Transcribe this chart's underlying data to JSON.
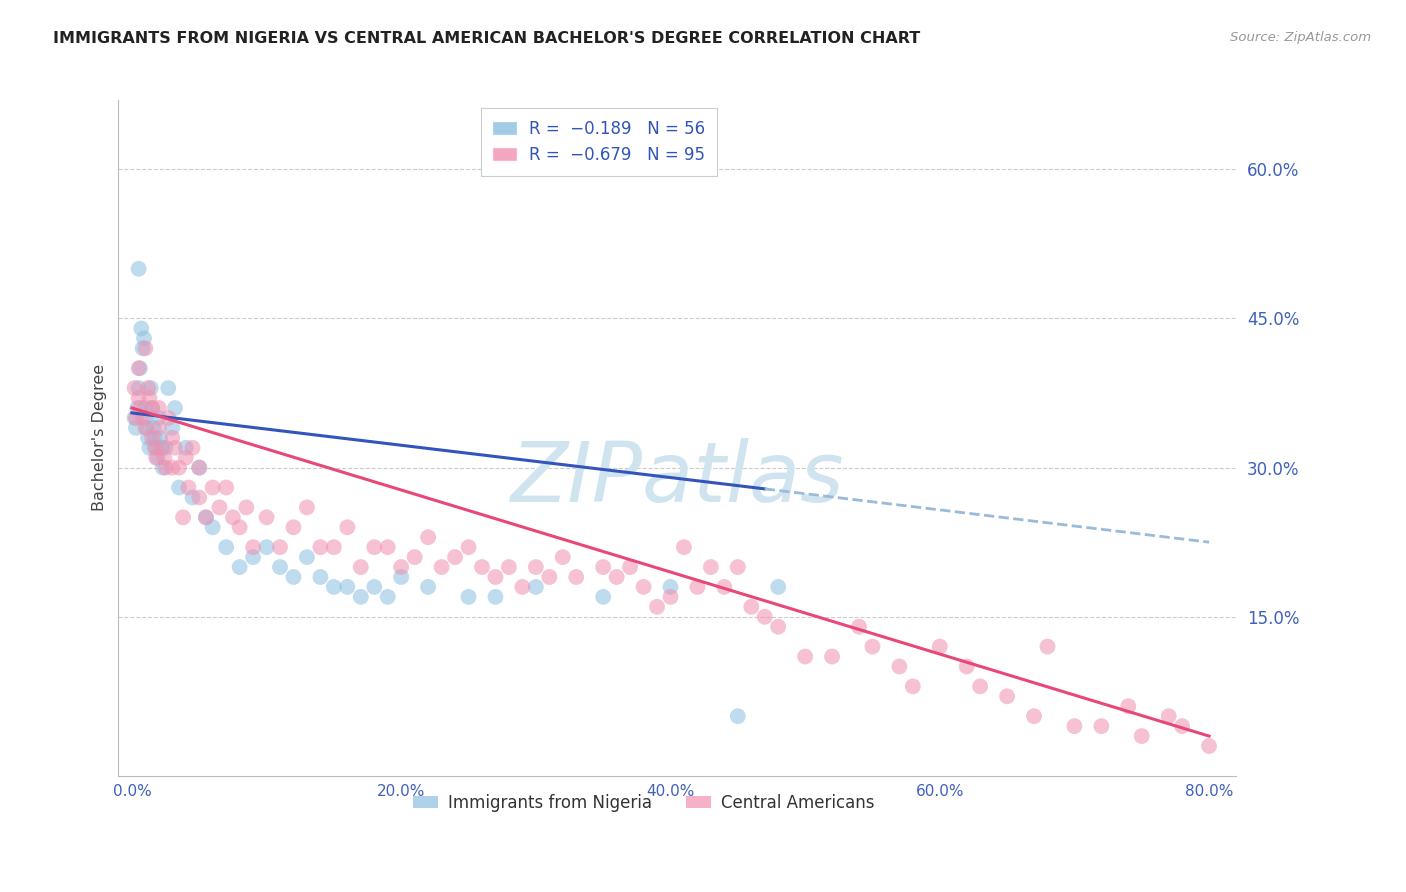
{
  "title": "IMMIGRANTS FROM NIGERIA VS CENTRAL AMERICAN BACHELOR'S DEGREE CORRELATION CHART",
  "source": "Source: ZipAtlas.com",
  "ylabel": "Bachelor’s Degree",
  "xlabel_ticks": [
    "0.0%",
    "20.0%",
    "40.0%",
    "60.0%",
    "80.0%"
  ],
  "xlabel_vals": [
    0,
    20,
    40,
    60,
    80
  ],
  "ylabel_ticks_right": [
    "60.0%",
    "45.0%",
    "30.0%",
    "15.0%"
  ],
  "ylabel_vals_right": [
    60,
    45,
    30,
    15
  ],
  "xlim": [
    -1,
    82
  ],
  "ylim": [
    -1,
    67
  ],
  "nigeria_color": "#8bbfe0",
  "central_color": "#f090b0",
  "nigeria_line_color": "#3355bb",
  "central_line_color": "#e84878",
  "dashed_color": "#99bbd8",
  "watermark_text": "ZIPatlas",
  "legend1_nigeria": "R =  −0.189   N = 56",
  "legend1_central": "R =  −0.679   N = 95",
  "legend2_nigeria": "Immigrants from Nigeria",
  "legend2_central": "Central Americans",
  "nigeria_x": [
    0.2,
    0.3,
    0.4,
    0.5,
    0.5,
    0.6,
    0.7,
    0.8,
    0.9,
    1.0,
    1.0,
    1.1,
    1.2,
    1.3,
    1.4,
    1.5,
    1.6,
    1.7,
    1.8,
    1.9,
    2.0,
    2.1,
    2.2,
    2.3,
    2.5,
    2.7,
    3.0,
    3.2,
    3.5,
    4.0,
    4.5,
    5.0,
    5.5,
    6.0,
    7.0,
    8.0,
    9.0,
    10.0,
    11.0,
    12.0,
    13.0,
    14.0,
    15.0,
    16.0,
    17.0,
    18.0,
    19.0,
    20.0,
    22.0,
    25.0,
    27.0,
    30.0,
    35.0,
    40.0,
    45.0,
    48.0
  ],
  "nigeria_y": [
    35.0,
    34.0,
    36.0,
    50.0,
    38.0,
    40.0,
    44.0,
    42.0,
    43.0,
    36.0,
    35.0,
    34.0,
    33.0,
    32.0,
    38.0,
    36.0,
    34.0,
    33.0,
    32.0,
    31.0,
    35.0,
    33.0,
    32.0,
    30.0,
    32.0,
    38.0,
    34.0,
    36.0,
    28.0,
    32.0,
    27.0,
    30.0,
    25.0,
    24.0,
    22.0,
    20.0,
    21.0,
    22.0,
    20.0,
    19.0,
    21.0,
    19.0,
    18.0,
    18.0,
    17.0,
    18.0,
    17.0,
    19.0,
    18.0,
    17.0,
    17.0,
    18.0,
    17.0,
    18.0,
    5.0,
    18.0
  ],
  "central_x": [
    0.2,
    0.3,
    0.5,
    0.5,
    0.6,
    0.8,
    1.0,
    1.0,
    1.2,
    1.3,
    1.5,
    1.5,
    1.7,
    1.8,
    2.0,
    2.0,
    2.2,
    2.4,
    2.5,
    2.7,
    3.0,
    3.0,
    3.2,
    3.5,
    3.8,
    4.0,
    4.2,
    4.5,
    5.0,
    5.0,
    5.5,
    6.0,
    6.5,
    7.0,
    7.5,
    8.0,
    8.5,
    9.0,
    10.0,
    11.0,
    12.0,
    13.0,
    14.0,
    15.0,
    16.0,
    17.0,
    18.0,
    19.0,
    20.0,
    21.0,
    22.0,
    23.0,
    24.0,
    25.0,
    26.0,
    27.0,
    28.0,
    29.0,
    30.0,
    31.0,
    32.0,
    33.0,
    35.0,
    36.0,
    37.0,
    38.0,
    39.0,
    40.0,
    41.0,
    42.0,
    43.0,
    44.0,
    45.0,
    46.0,
    47.0,
    48.0,
    50.0,
    52.0,
    54.0,
    55.0,
    57.0,
    58.0,
    60.0,
    62.0,
    63.0,
    65.0,
    67.0,
    68.0,
    70.0,
    72.0,
    74.0,
    75.0,
    77.0,
    78.0,
    80.0
  ],
  "central_y": [
    38.0,
    35.0,
    40.0,
    37.0,
    36.0,
    35.0,
    42.0,
    34.0,
    38.0,
    37.0,
    33.0,
    36.0,
    32.0,
    31.0,
    36.0,
    34.0,
    32.0,
    31.0,
    30.0,
    35.0,
    33.0,
    30.0,
    32.0,
    30.0,
    25.0,
    31.0,
    28.0,
    32.0,
    27.0,
    30.0,
    25.0,
    28.0,
    26.0,
    28.0,
    25.0,
    24.0,
    26.0,
    22.0,
    25.0,
    22.0,
    24.0,
    26.0,
    22.0,
    22.0,
    24.0,
    20.0,
    22.0,
    22.0,
    20.0,
    21.0,
    23.0,
    20.0,
    21.0,
    22.0,
    20.0,
    19.0,
    20.0,
    18.0,
    20.0,
    19.0,
    21.0,
    19.0,
    20.0,
    19.0,
    20.0,
    18.0,
    16.0,
    17.0,
    22.0,
    18.0,
    20.0,
    18.0,
    20.0,
    16.0,
    15.0,
    14.0,
    11.0,
    11.0,
    14.0,
    12.0,
    10.0,
    8.0,
    12.0,
    10.0,
    8.0,
    7.0,
    5.0,
    12.0,
    4.0,
    4.0,
    6.0,
    3.0,
    5.0,
    4.0,
    2.0
  ],
  "nig_line_x0": 0,
  "nig_line_x1": 80,
  "nig_line_y0": 35.5,
  "nig_line_y1": 22.5,
  "nig_solid_x_end": 47,
  "cen_line_x0": 0,
  "cen_line_x1": 80,
  "cen_line_y0": 36.0,
  "cen_line_y1": 3.0
}
